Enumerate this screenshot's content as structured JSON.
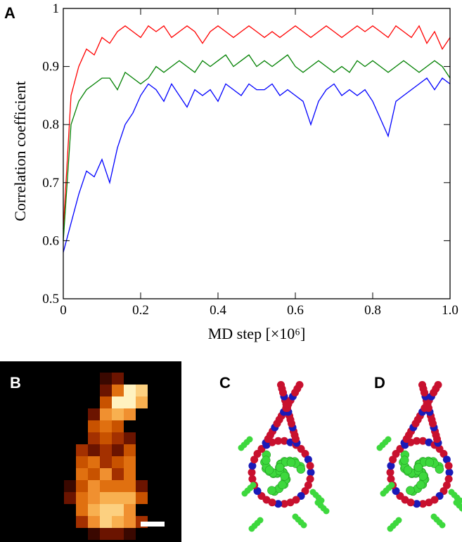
{
  "chart_data": {
    "type": "line",
    "panel_labels": [
      "A",
      "B",
      "C",
      "D"
    ],
    "x_label": "MD step [×10⁶]",
    "y_label": "Correlation coefficient",
    "x": [
      0,
      0.02,
      0.04,
      0.06,
      0.08,
      0.1,
      0.12,
      0.14,
      0.16,
      0.18,
      0.2,
      0.22,
      0.24,
      0.26,
      0.28,
      0.3,
      0.32,
      0.34,
      0.36,
      0.38,
      0.4,
      0.42,
      0.44,
      0.46,
      0.48,
      0.5,
      0.52,
      0.54,
      0.56,
      0.58,
      0.6,
      0.62,
      0.64,
      0.66,
      0.68,
      0.7,
      0.72,
      0.74,
      0.76,
      0.78,
      0.8,
      0.82,
      0.84,
      0.86,
      0.88,
      0.9,
      0.92,
      0.94,
      0.96,
      0.98,
      1
    ],
    "series": [
      {
        "color": "#ff0000",
        "values": [
          0.62,
          0.85,
          0.9,
          0.93,
          0.92,
          0.95,
          0.94,
          0.96,
          0.97,
          0.96,
          0.95,
          0.97,
          0.96,
          0.97,
          0.95,
          0.96,
          0.97,
          0.96,
          0.94,
          0.96,
          0.97,
          0.96,
          0.95,
          0.96,
          0.97,
          0.96,
          0.95,
          0.96,
          0.95,
          0.96,
          0.97,
          0.96,
          0.95,
          0.96,
          0.97,
          0.96,
          0.95,
          0.96,
          0.97,
          0.96,
          0.97,
          0.96,
          0.95,
          0.97,
          0.96,
          0.95,
          0.97,
          0.94,
          0.96,
          0.93,
          0.95
        ]
      },
      {
        "color": "#008000",
        "values": [
          0.6,
          0.8,
          0.84,
          0.86,
          0.87,
          0.88,
          0.88,
          0.86,
          0.89,
          0.88,
          0.87,
          0.88,
          0.9,
          0.89,
          0.9,
          0.91,
          0.9,
          0.89,
          0.91,
          0.9,
          0.91,
          0.92,
          0.9,
          0.91,
          0.92,
          0.9,
          0.91,
          0.9,
          0.91,
          0.92,
          0.9,
          0.89,
          0.9,
          0.91,
          0.9,
          0.89,
          0.9,
          0.89,
          0.91,
          0.9,
          0.91,
          0.9,
          0.89,
          0.9,
          0.91,
          0.9,
          0.89,
          0.9,
          0.91,
          0.9,
          0.88
        ]
      },
      {
        "color": "#0000ff",
        "values": [
          0.58,
          0.63,
          0.68,
          0.72,
          0.71,
          0.74,
          0.7,
          0.76,
          0.8,
          0.82,
          0.85,
          0.87,
          0.86,
          0.84,
          0.87,
          0.85,
          0.83,
          0.86,
          0.85,
          0.86,
          0.84,
          0.87,
          0.86,
          0.85,
          0.87,
          0.86,
          0.86,
          0.87,
          0.85,
          0.86,
          0.85,
          0.84,
          0.8,
          0.84,
          0.86,
          0.87,
          0.85,
          0.86,
          0.85,
          0.86,
          0.84,
          0.81,
          0.78,
          0.84,
          0.85,
          0.86,
          0.87,
          0.88,
          0.86,
          0.88,
          0.87
        ]
      }
    ],
    "xlim": [
      0,
      1
    ],
    "xticks": [
      0,
      0.2,
      0.4,
      0.6,
      0.8,
      {
        "value": 1,
        "label": "1.0"
      }
    ],
    "ylim": [
      0.5,
      1
    ],
    "yticks": [
      0.5,
      0.6,
      0.7,
      0.8,
      0.9,
      1
    ]
  }
}
